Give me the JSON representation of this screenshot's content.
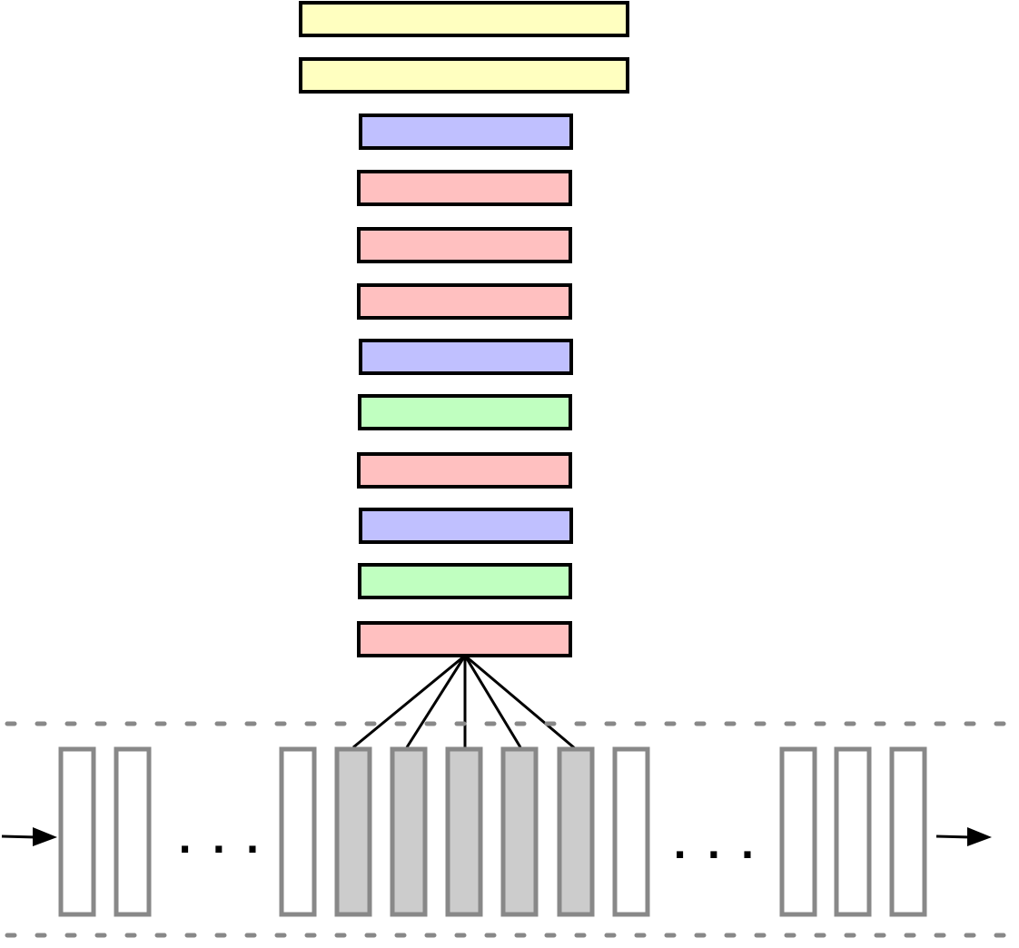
{
  "diagram": {
    "layers": [
      {
        "kind": "yellow"
      },
      {
        "kind": "yellow"
      },
      {
        "kind": "blue"
      },
      {
        "kind": "red"
      },
      {
        "kind": "red"
      },
      {
        "kind": "red"
      },
      {
        "kind": "blue"
      },
      {
        "kind": "green"
      },
      {
        "kind": "red"
      },
      {
        "kind": "blue"
      },
      {
        "kind": "green"
      },
      {
        "kind": "red"
      }
    ],
    "colors": {
      "yellow": "#ffffc0",
      "blue": "#c0c0ff",
      "red": "#ffc0c0",
      "green": "#c0ffc0",
      "frame_active": "#cccccc",
      "frame_inactive": "#ffffff",
      "frame_border": "#888888",
      "layer_border": "#000000"
    },
    "sequence": {
      "left_frames": 2,
      "middle_frames": [
        {
          "active": false
        },
        {
          "active": true
        },
        {
          "active": true
        },
        {
          "active": true
        },
        {
          "active": true
        },
        {
          "active": true
        },
        {
          "active": false
        }
      ],
      "right_frames": 3,
      "ellipsis": "..."
    }
  }
}
